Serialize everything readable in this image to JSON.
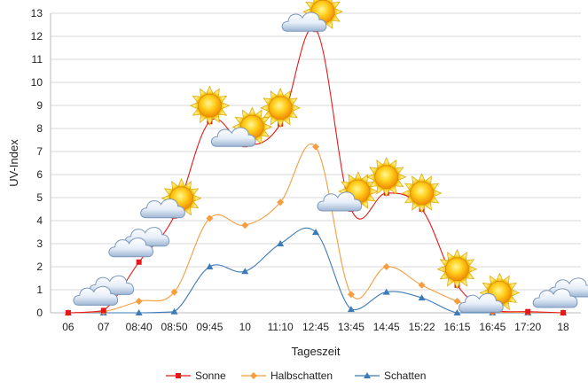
{
  "chart_data": {
    "type": "line",
    "title": "",
    "xlabel": "Tageszeit",
    "ylabel": "UV-Index",
    "ylim": [
      0,
      13
    ],
    "yticks": [
      0,
      1,
      2,
      3,
      4,
      5,
      6,
      7,
      8,
      9,
      10,
      11,
      12,
      13
    ],
    "categories": [
      "06",
      "07",
      "08:40",
      "08:50",
      "09:45",
      "10",
      "11:10",
      "12:45",
      "13:45",
      "14:45",
      "15:22",
      "16:15",
      "16:45",
      "17:20",
      "18"
    ],
    "grid": "horizontal",
    "legend_position": "bottom",
    "series": [
      {
        "name": "Sonne",
        "color": "#e31a1c",
        "marker": "square",
        "values": [
          0,
          0.1,
          2.2,
          4.2,
          8.3,
          7.3,
          8.2,
          12.3,
          4.5,
          5.2,
          4.5,
          1.2,
          0.1,
          0.05,
          0
        ]
      },
      {
        "name": "Halbschatten",
        "color": "#f59d42",
        "marker": "diamond",
        "values": [
          0,
          0.05,
          0.5,
          0.9,
          4.1,
          3.8,
          4.8,
          7.2,
          0.8,
          2.0,
          1.2,
          0.5,
          0.03,
          0.02,
          0
        ]
      },
      {
        "name": "Schatten",
        "color": "#3d7ab8",
        "marker": "triangle",
        "values": [
          0,
          0.0,
          0.0,
          0.05,
          2.0,
          1.8,
          3.0,
          3.5,
          0.15,
          0.9,
          0.65,
          0.0,
          0.0,
          0.0,
          0
        ]
      }
    ],
    "weather_icons": [
      {
        "category": "07",
        "icon": "cloud-icon"
      },
      {
        "category": "08:40",
        "icon": "cloud-icon"
      },
      {
        "category": "08:50",
        "icon": "sun-behind-cloud-icon"
      },
      {
        "category": "09:45",
        "icon": "sun-icon"
      },
      {
        "category": "10",
        "icon": "sun-behind-cloud-icon"
      },
      {
        "category": "11:10",
        "icon": "sun-icon"
      },
      {
        "category": "12:45",
        "icon": "sun-behind-cloud-icon"
      },
      {
        "category": "13:45",
        "icon": "sun-behind-cloud-icon"
      },
      {
        "category": "14:45",
        "icon": "sun-icon"
      },
      {
        "category": "15:22",
        "icon": "sun-icon"
      },
      {
        "category": "16:15",
        "icon": "sun-icon"
      },
      {
        "category": "16:45",
        "icon": "sun-behind-cloud-icon"
      },
      {
        "category": "18",
        "icon": "cloud-icon"
      }
    ]
  }
}
